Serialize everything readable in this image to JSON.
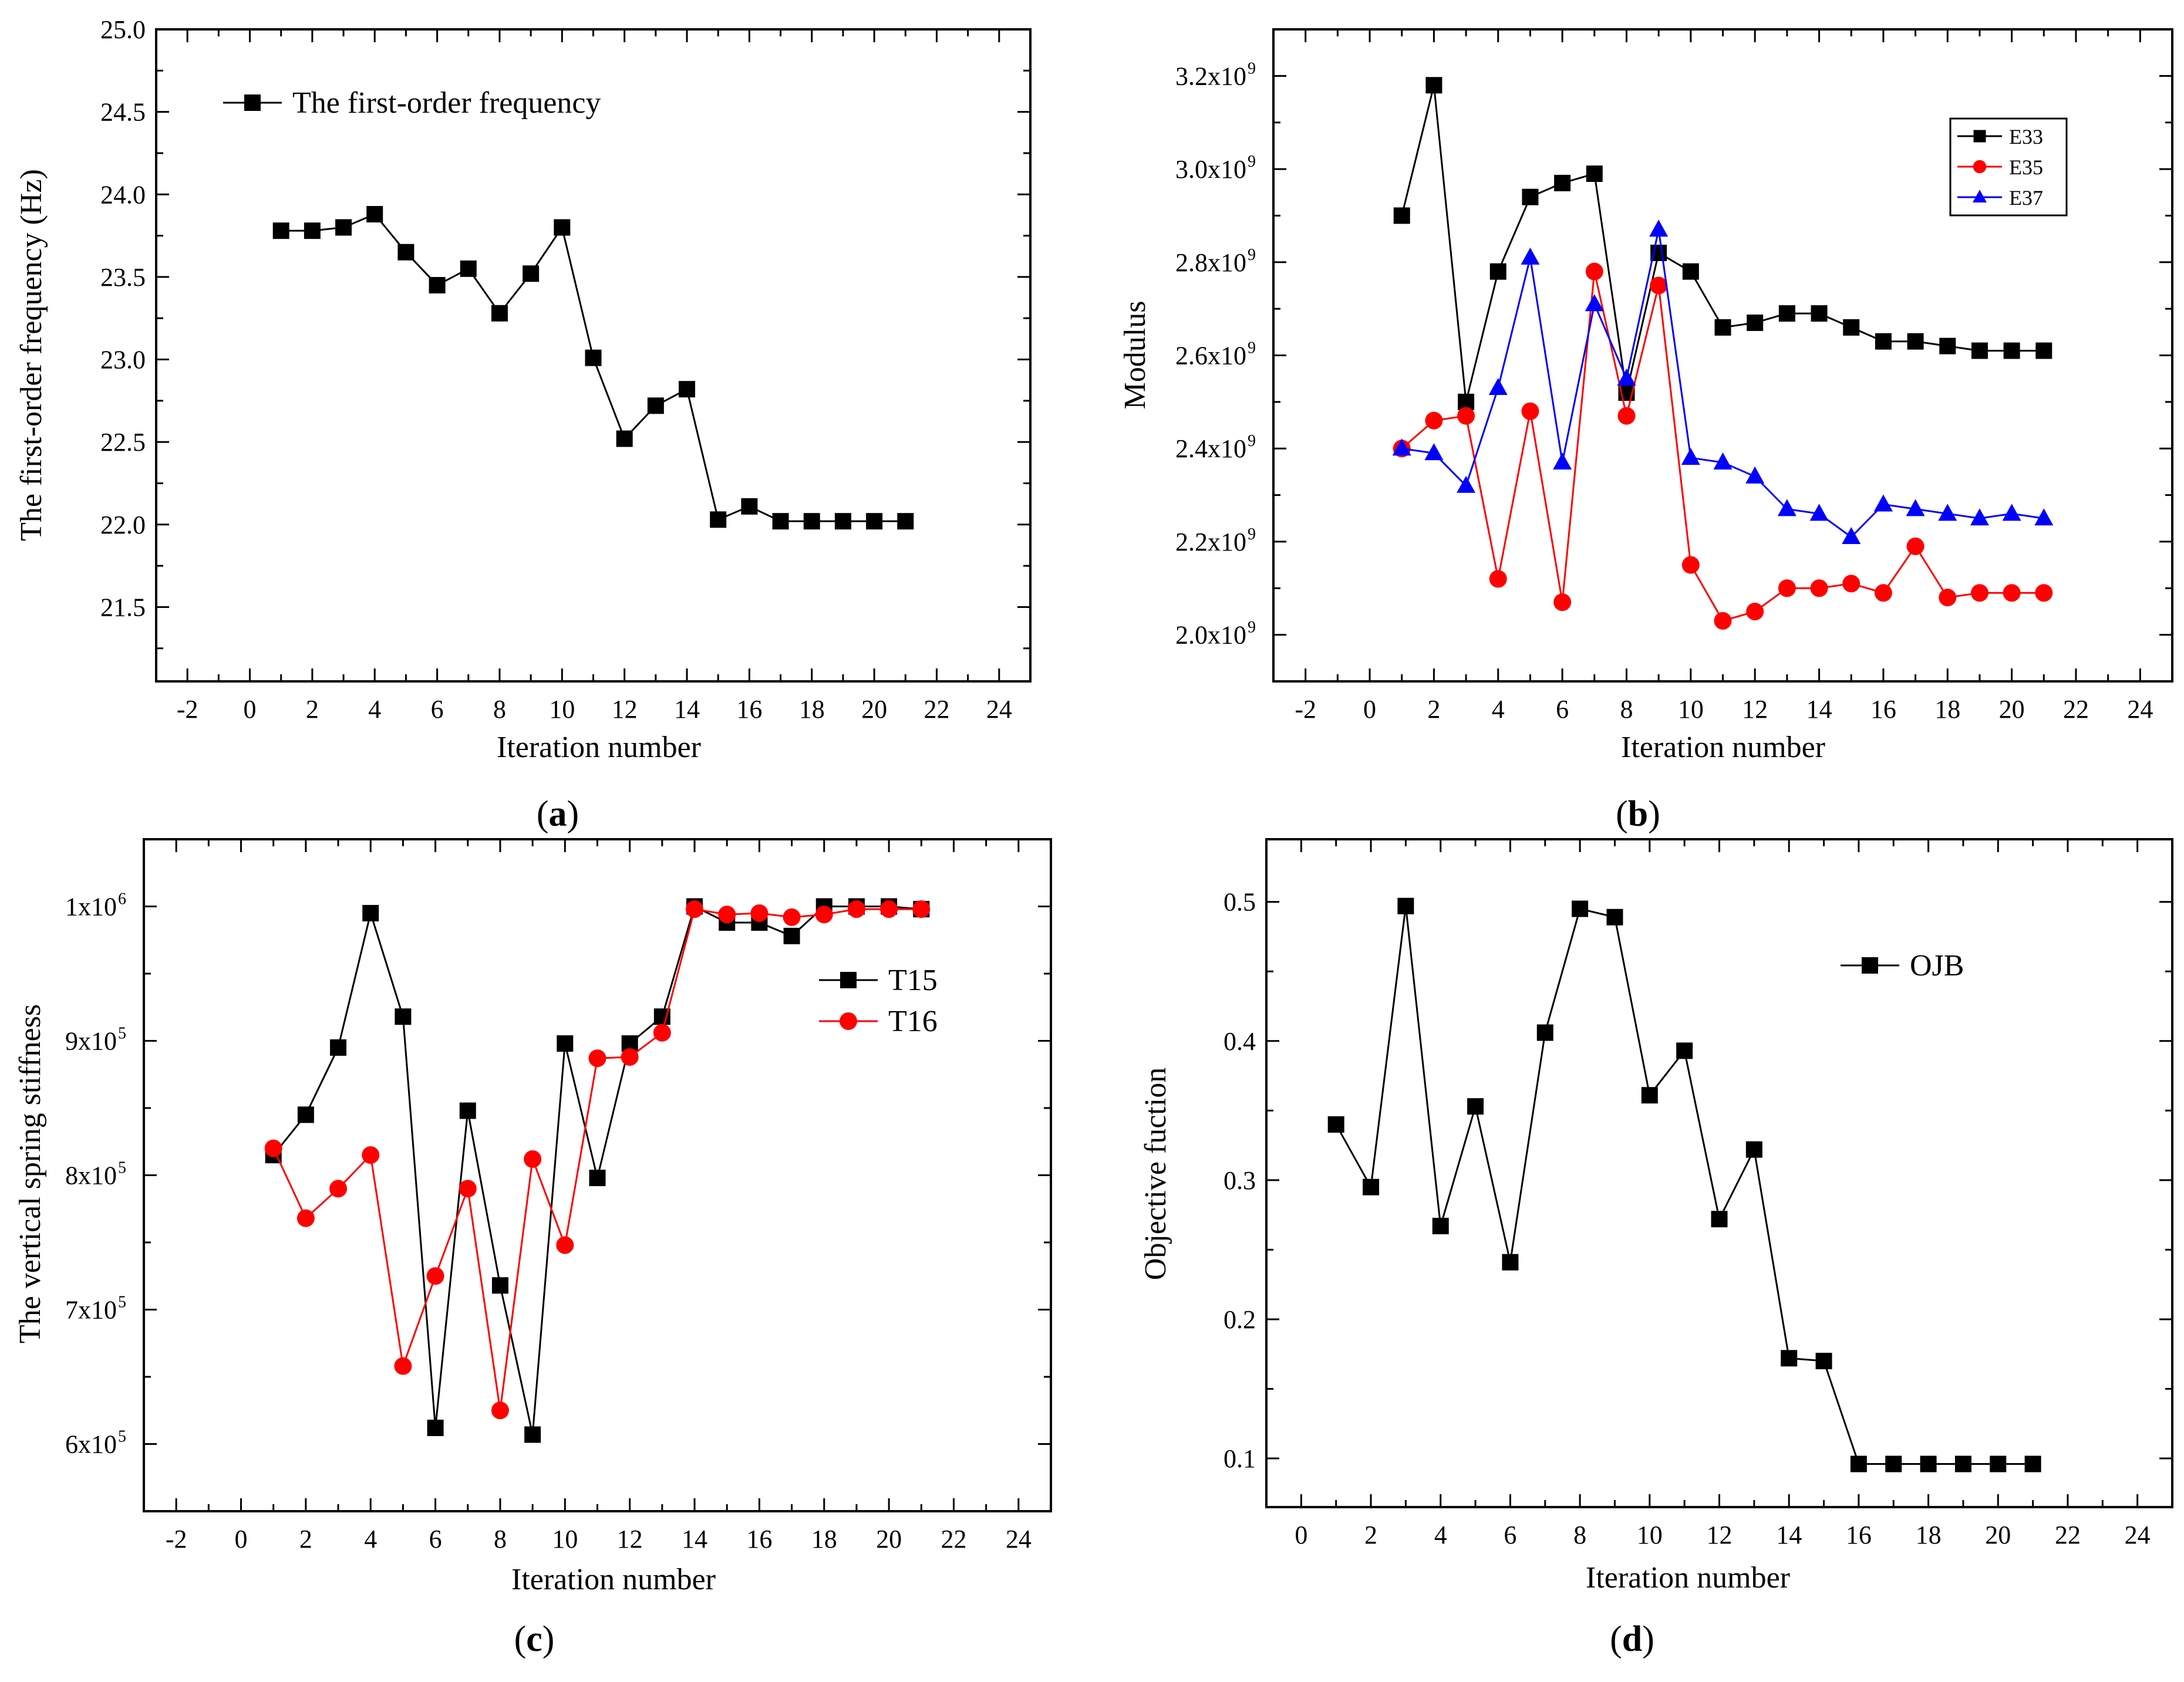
{
  "chart_data": [
    {
      "id": "a",
      "type": "line",
      "panel_label": "a",
      "xlabel": "Iteration number",
      "ylabel": "The first-order frequency (Hz)",
      "xlim": [
        -3,
        25
      ],
      "ylim": [
        21.05,
        25.0
      ],
      "xticks": [
        -2,
        0,
        2,
        4,
        6,
        8,
        10,
        12,
        14,
        16,
        18,
        20,
        22,
        24
      ],
      "yticks": [
        21.5,
        22.0,
        22.5,
        23.0,
        23.5,
        24.0,
        24.5,
        25.0
      ],
      "ytick_labels": [
        "21.5",
        "22.0",
        "22.5",
        "23.0",
        "23.5",
        "24.0",
        "24.5",
        "25.0"
      ],
      "legend_position": "top-left",
      "series": [
        {
          "name": "The first-order frequency",
          "color": "#000000",
          "marker": "square",
          "x": [
            1,
            2,
            3,
            4,
            5,
            6,
            7,
            8,
            9,
            10,
            11,
            12,
            13,
            14,
            15,
            16,
            17,
            18,
            19,
            20,
            21
          ],
          "y": [
            23.78,
            23.78,
            23.8,
            23.88,
            23.65,
            23.45,
            23.55,
            23.28,
            23.52,
            23.8,
            23.01,
            22.52,
            22.72,
            22.82,
            22.03,
            22.11,
            22.02,
            22.02,
            22.02,
            22.02,
            22.02
          ]
        }
      ]
    },
    {
      "id": "b",
      "type": "line",
      "panel_label": "b",
      "xlabel": "Iteration number",
      "ylabel": "Modulus",
      "xlim": [
        -3,
        25
      ],
      "ylim": [
        1900000000.0,
        3300000000.0
      ],
      "xticks": [
        -2,
        0,
        2,
        4,
        6,
        8,
        10,
        12,
        14,
        16,
        18,
        20,
        22,
        24
      ],
      "yticks": [
        2000000000.0,
        2200000000.0,
        2400000000.0,
        2600000000.0,
        2800000000.0,
        3000000000.0,
        3200000000.0
      ],
      "ytick_labels": [
        "2.0x10",
        "2.2x10",
        "2.4x10",
        "2.6x10",
        "2.8x10",
        "3.0x10",
        "3.2x10"
      ],
      "ytick_exponent": "9",
      "legend_position": "top-right",
      "series": [
        {
          "name": "E33",
          "color": "#000000",
          "marker": "square",
          "x": [
            1,
            2,
            3,
            4,
            5,
            6,
            7,
            8,
            9,
            10,
            11,
            12,
            13,
            14,
            15,
            16,
            17,
            18,
            19,
            20,
            21
          ],
          "y": [
            2900000000.0,
            3180000000.0,
            2500000000.0,
            2780000000.0,
            2940000000.0,
            2970000000.0,
            2990000000.0,
            2520000000.0,
            2820000000.0,
            2780000000.0,
            2660000000.0,
            2670000000.0,
            2690000000.0,
            2690000000.0,
            2660000000.0,
            2630000000.0,
            2630000000.0,
            2620000000.0,
            2610000000.0,
            2610000000.0,
            2610000000.0
          ]
        },
        {
          "name": "E35",
          "color": "#ff0000",
          "marker": "circle",
          "x": [
            1,
            2,
            3,
            4,
            5,
            6,
            7,
            8,
            9,
            10,
            11,
            12,
            13,
            14,
            15,
            16,
            17,
            18,
            19,
            20,
            21
          ],
          "y": [
            2400000000.0,
            2460000000.0,
            2470000000.0,
            2120000000.0,
            2480000000.0,
            2070000000.0,
            2780000000.0,
            2470000000.0,
            2750000000.0,
            2150000000.0,
            2030000000.0,
            2050000000.0,
            2100000000.0,
            2100000000.0,
            2110000000.0,
            2090000000.0,
            2190000000.0,
            2080000000.0,
            2090000000.0,
            2090000000.0,
            2090000000.0
          ]
        },
        {
          "name": "E37",
          "color": "#0000ff",
          "marker": "triangle",
          "x": [
            1,
            2,
            3,
            4,
            5,
            6,
            7,
            8,
            9,
            10,
            11,
            12,
            13,
            14,
            15,
            16,
            17,
            18,
            19,
            20,
            21
          ],
          "y": [
            2400000000.0,
            2390000000.0,
            2320000000.0,
            2530000000.0,
            2810000000.0,
            2370000000.0,
            2710000000.0,
            2550000000.0,
            2870000000.0,
            2380000000.0,
            2370000000.0,
            2340000000.0,
            2270000000.0,
            2260000000.0,
            2210000000.0,
            2280000000.0,
            2270000000.0,
            2260000000.0,
            2250000000.0,
            2260000000.0,
            2250000000.0
          ]
        }
      ]
    },
    {
      "id": "c",
      "type": "line",
      "panel_label": "c",
      "xlabel": "Iteration number",
      "ylabel": "The vertical spring stiffness",
      "xlim": [
        -3,
        25
      ],
      "ylim": [
        550000.0,
        1050000.0
      ],
      "xticks": [
        -2,
        0,
        2,
        4,
        6,
        8,
        10,
        12,
        14,
        16,
        18,
        20,
        22,
        24
      ],
      "yticks": [
        600000.0,
        700000.0,
        800000.0,
        900000.0,
        1000000.0
      ],
      "ytick_labels": [
        "6x10",
        "7x10",
        "8x10",
        "9x10",
        "1x10"
      ],
      "ytick_exponents": [
        "5",
        "5",
        "5",
        "5",
        "6"
      ],
      "legend_position": "right",
      "series": [
        {
          "name": "T15",
          "color": "#000000",
          "marker": "square",
          "x": [
            1,
            2,
            3,
            4,
            5,
            6,
            7,
            8,
            9,
            10,
            11,
            12,
            13,
            14,
            15,
            16,
            17,
            18,
            19,
            20,
            21
          ],
          "y": [
            815000.0,
            845000.0,
            895000.0,
            995000.0,
            918000.0,
            612000.0,
            848000.0,
            718000.0,
            607000.0,
            898000.0,
            798000.0,
            898000.0,
            918000.0,
            1000000.0,
            988000.0,
            988000.0,
            978000.0,
            1000000.0,
            1000000.0,
            1000000.0,
            998000.0
          ]
        },
        {
          "name": "T16",
          "color": "#ff0000",
          "marker": "circle",
          "x": [
            1,
            2,
            3,
            4,
            5,
            6,
            7,
            8,
            9,
            10,
            11,
            12,
            13,
            14,
            15,
            16,
            17,
            18,
            19,
            20,
            21
          ],
          "y": [
            820000.0,
            768000.0,
            790000.0,
            815000.0,
            658000.0,
            725000.0,
            790000.0,
            625000.0,
            812000.0,
            748000.0,
            887000.0,
            888000.0,
            906000.0,
            998000.0,
            994000.0,
            995000.0,
            992000.0,
            994000.0,
            998000.0,
            998000.0,
            998000.0
          ]
        }
      ]
    },
    {
      "id": "d",
      "type": "line",
      "panel_label": "d",
      "xlabel": "Iteration number",
      "ylabel": "Objective fuction",
      "xlim": [
        -1,
        25
      ],
      "ylim": [
        0.065,
        0.545
      ],
      "xticks": [
        0,
        2,
        4,
        6,
        8,
        10,
        12,
        14,
        16,
        18,
        20,
        22,
        24
      ],
      "yticks": [
        0.1,
        0.2,
        0.3,
        0.4,
        0.5
      ],
      "ytick_labels": [
        "0.1",
        "0.2",
        "0.3",
        "0.4",
        "0.5"
      ],
      "legend_position": "top-right",
      "series": [
        {
          "name": "OJB",
          "color": "#000000",
          "marker": "square",
          "x": [
            1,
            2,
            3,
            4,
            5,
            6,
            7,
            8,
            9,
            10,
            11,
            12,
            13,
            14,
            15,
            16,
            17,
            18,
            19,
            20,
            21
          ],
          "y": [
            0.34,
            0.295,
            0.497,
            0.267,
            0.353,
            0.241,
            0.406,
            0.495,
            0.489,
            0.361,
            0.393,
            0.272,
            0.322,
            0.172,
            0.17,
            0.096,
            0.096,
            0.096,
            0.096,
            0.096,
            0.096
          ]
        }
      ]
    }
  ]
}
